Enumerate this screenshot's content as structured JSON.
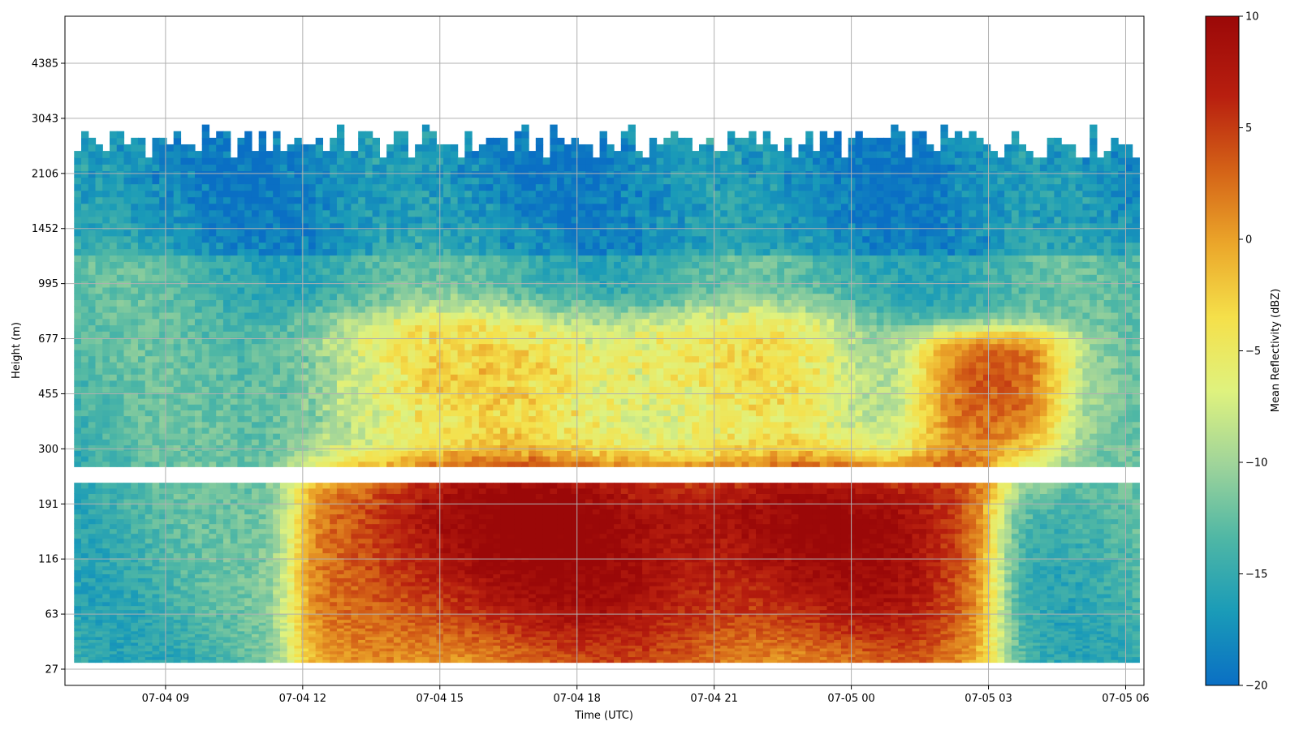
{
  "chart_data": {
    "type": "heatmap",
    "title": "",
    "xlabel": "Time (UTC)",
    "ylabel": "Height (m)",
    "x_ticks": [
      "07-04 09",
      "07-04 12",
      "07-04 15",
      "07-04 18",
      "07-04 21",
      "07-05 00",
      "07-05 03",
      "07-05 06"
    ],
    "y_ticks": [
      "27",
      "63",
      "116",
      "191",
      "300",
      "455",
      "677",
      "995",
      "1452",
      "2106",
      "3043",
      "4385"
    ],
    "x_range_hours": [
      6.8,
      30.4
    ],
    "colorbar": {
      "label": "Mean Reflectivity (dBZ)",
      "colormap": "HomeyerRainbow-like",
      "range": [
        -20,
        10
      ],
      "ticks": [
        "10",
        "5",
        "0",
        "−5",
        "−10",
        "−15",
        "−20"
      ],
      "stops": [
        "#0a6fc4",
        "#1a9bb8",
        "#4fb7a5",
        "#9fd49a",
        "#dff27e",
        "#f5e04a",
        "#eba62a",
        "#d46217",
        "#b81f0f",
        "#9b0808"
      ]
    },
    "grid": true,
    "summary_field": {
      "description_of_values_dBZ": "low-level (<300 m) strong echo 07-04 12 to 07-05 03, mid-level (300-800 m) moderate echo, upper clutter/clouds up to ~3000 m",
      "gap_height_band_m": [
        230,
        260
      ],
      "background_dbz": -14,
      "low_level_peak_dbz": 9,
      "mid_level_peak_dbz": 4,
      "cloud_top_m": 3000
    }
  }
}
